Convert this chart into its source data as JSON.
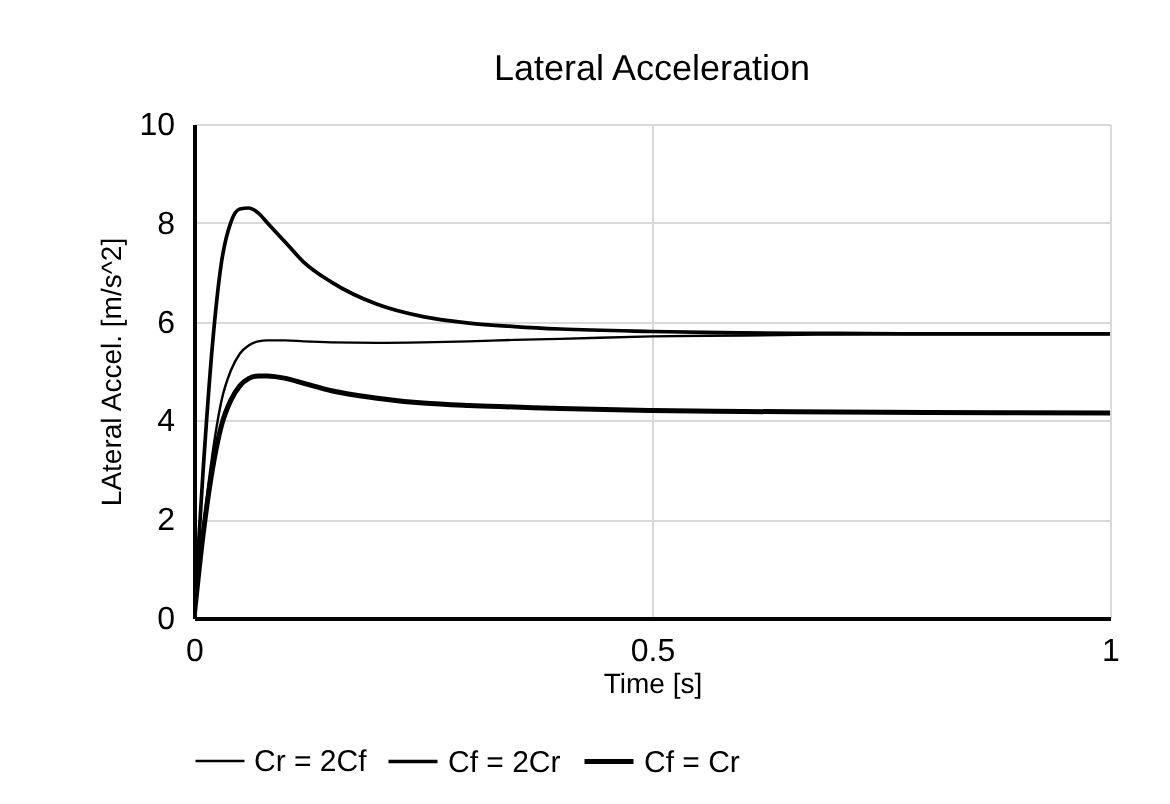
{
  "chart_data": {
    "type": "line",
    "title": "Lateral Acceleration",
    "xlabel": "Time [s]",
    "ylabel": "LAteral Accel. [m/s^2]",
    "x": [
      0,
      0.01,
      0.02,
      0.03,
      0.04,
      0.05,
      0.06,
      0.07,
      0.08,
      0.1,
      0.12,
      0.15,
      0.2,
      0.25,
      0.3,
      0.35,
      0.4,
      0.5,
      0.6,
      0.7,
      0.8,
      1.0
    ],
    "series": [
      {
        "name": "Cr = 2Cf",
        "color": "#000000",
        "values": [
          0,
          1.8,
          3.3,
          4.4,
          5.0,
          5.35,
          5.52,
          5.6,
          5.62,
          5.62,
          5.6,
          5.58,
          5.57,
          5.58,
          5.6,
          5.63,
          5.65,
          5.7,
          5.72,
          5.74,
          5.75,
          5.75
        ]
      },
      {
        "name": "Cf = 2Cr",
        "color": "#000000",
        "values": [
          0,
          3.0,
          5.5,
          7.2,
          8.0,
          8.28,
          8.3,
          8.2,
          8.0,
          7.6,
          7.2,
          6.8,
          6.35,
          6.1,
          5.97,
          5.9,
          5.85,
          5.8,
          5.77,
          5.76,
          5.75,
          5.75
        ]
      },
      {
        "name": "Cf = Cr",
        "color": "#000000",
        "values": [
          0,
          1.7,
          3.0,
          3.9,
          4.4,
          4.7,
          4.85,
          4.9,
          4.9,
          4.85,
          4.75,
          4.6,
          4.45,
          4.35,
          4.3,
          4.27,
          4.24,
          4.2,
          4.18,
          4.17,
          4.16,
          4.15
        ]
      }
    ],
    "xlim": [
      0,
      1
    ],
    "xticks": [
      0,
      0.5,
      1
    ],
    "ylim": [
      0,
      10
    ],
    "yticks": [
      0,
      2,
      4,
      6,
      8,
      10
    ],
    "grid": true,
    "legend": "bottom",
    "marker": "none",
    "line_style": "solid"
  }
}
